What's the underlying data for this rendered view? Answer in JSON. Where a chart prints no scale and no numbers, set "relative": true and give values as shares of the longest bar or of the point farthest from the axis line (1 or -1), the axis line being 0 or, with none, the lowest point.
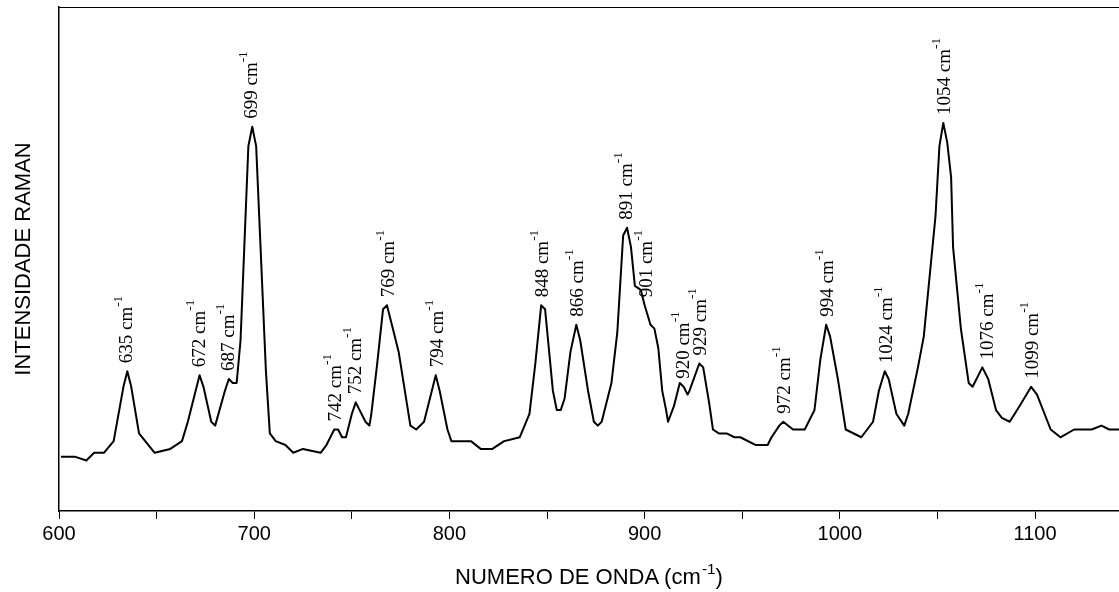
{
  "chart_data": {
    "type": "line",
    "xlabel": "NUMERO DE ONDA (cm$^{-1}$)",
    "ylabel": "INTENSIDADE RAMAN",
    "color": "#000000",
    "relative": true,
    "xlim": [
      600,
      1143
    ],
    "xticks": [
      600,
      {
        "value": 650,
        "label": null
      },
      700,
      {
        "value": 750,
        "label": null
      },
      800,
      {
        "value": 850,
        "label": null
      },
      900,
      {
        "value": 950,
        "label": null
      },
      1000,
      {
        "value": 1050,
        "label": null
      },
      1100
    ],
    "x": [
      601,
      608,
      614,
      618,
      623,
      628,
      633,
      635,
      637,
      641,
      649,
      657,
      663,
      666,
      670,
      672,
      674,
      678,
      680,
      685,
      687,
      689,
      691,
      693,
      697,
      699,
      701,
      706,
      708,
      711,
      716,
      720,
      725,
      734,
      737,
      741,
      743,
      745,
      747,
      750,
      752,
      754,
      757,
      759,
      760,
      763,
      766,
      768,
      771,
      774,
      780,
      783,
      787,
      793,
      795,
      799,
      801,
      807,
      811,
      816,
      822,
      828,
      836,
      841,
      844,
      847,
      849,
      853,
      855,
      857,
      859,
      862,
      865,
      867,
      871,
      874,
      876,
      878,
      883,
      886,
      889,
      891,
      893,
      895,
      898,
      900,
      903,
      905,
      907,
      909,
      911,
      912,
      915,
      918,
      920,
      922,
      923,
      928,
      930,
      933,
      935,
      938,
      942,
      946,
      949,
      957,
      963,
      965,
      969,
      971,
      976,
      982,
      987,
      990,
      993,
      995,
      999,
      1003,
      1011,
      1017,
      1020,
      1023,
      1025,
      1029,
      1033,
      1035,
      1040,
      1043,
      1049,
      1051,
      1053,
      1055,
      1057,
      1058,
      1062,
      1066,
      1068,
      1071,
      1073,
      1076,
      1080,
      1083,
      1087,
      1092,
      1098,
      1101,
      1108,
      1113,
      1120,
      1126,
      1129,
      1134,
      1138,
      1143
    ],
    "values": [
      0.14,
      0.14,
      0.13,
      0.15,
      0.15,
      0.18,
      0.32,
      0.36,
      0.32,
      0.2,
      0.15,
      0.16,
      0.18,
      0.23,
      0.31,
      0.35,
      0.32,
      0.23,
      0.22,
      0.31,
      0.34,
      0.33,
      0.33,
      0.44,
      0.94,
      0.99,
      0.94,
      0.36,
      0.2,
      0.18,
      0.17,
      0.15,
      0.16,
      0.15,
      0.17,
      0.21,
      0.21,
      0.19,
      0.19,
      0.25,
      0.28,
      0.26,
      0.23,
      0.22,
      0.25,
      0.38,
      0.52,
      0.53,
      0.47,
      0.41,
      0.22,
      0.21,
      0.23,
      0.35,
      0.31,
      0.21,
      0.18,
      0.18,
      0.18,
      0.16,
      0.16,
      0.18,
      0.19,
      0.25,
      0.38,
      0.53,
      0.52,
      0.31,
      0.26,
      0.26,
      0.29,
      0.41,
      0.48,
      0.44,
      0.31,
      0.23,
      0.22,
      0.23,
      0.33,
      0.46,
      0.71,
      0.73,
      0.68,
      0.58,
      0.57,
      0.53,
      0.48,
      0.47,
      0.42,
      0.31,
      0.26,
      0.23,
      0.27,
      0.33,
      0.32,
      0.3,
      0.31,
      0.38,
      0.37,
      0.28,
      0.21,
      0.2,
      0.2,
      0.19,
      0.19,
      0.17,
      0.17,
      0.19,
      0.22,
      0.23,
      0.21,
      0.21,
      0.26,
      0.39,
      0.48,
      0.45,
      0.34,
      0.21,
      0.19,
      0.23,
      0.31,
      0.36,
      0.34,
      0.25,
      0.22,
      0.25,
      0.37,
      0.45,
      0.76,
      0.94,
      1,
      0.95,
      0.86,
      0.68,
      0.47,
      0.33,
      0.32,
      0.35,
      0.37,
      0.34,
      0.26,
      0.24,
      0.23,
      0.27,
      0.32,
      0.3,
      0.21,
      0.19,
      0.21,
      0.21,
      0.21,
      0.22,
      0.21,
      0.21
    ],
    "annotations": [
      {
        "text": "635 cm$^{-1}$",
        "x": 635,
        "y": 0.36
      },
      {
        "text": "672 cm$^{-1}$",
        "x": 672,
        "y": 0.35
      },
      {
        "text": "687 cm$^{-1}$",
        "x": 687,
        "y": 0.34
      },
      {
        "text": "699 cm$^{-1}$",
        "x": 699,
        "y": 0.99
      },
      {
        "text": "742 cm$^{-1}$",
        "x": 742,
        "y": 0.21
      },
      {
        "text": "752 cm$^{-1}$",
        "x": 752,
        "y": 0.28
      },
      {
        "text": "769 cm$^{-1}$",
        "x": 769,
        "y": 0.53
      },
      {
        "text": "794 cm$^{-1}$",
        "x": 794,
        "y": 0.35
      },
      {
        "text": "848 cm$^{-1}$",
        "x": 848,
        "y": 0.53
      },
      {
        "text": "866 cm$^{-1}$",
        "x": 866,
        "y": 0.48
      },
      {
        "text": "891 cm$^{-1}$",
        "x": 891,
        "y": 0.73
      },
      {
        "text": "901 cm$^{-1}$",
        "x": 901,
        "y": 0.53
      },
      {
        "text": "920 cm$^{-1}$",
        "x": 920,
        "y": 0.32
      },
      {
        "text": "929 cm$^{-1}$",
        "x": 929,
        "y": 0.38
      },
      {
        "text": "972 cm$^{-1}$",
        "x": 972,
        "y": 0.23
      },
      {
        "text": "994 cm$^{-1}$",
        "x": 994,
        "y": 0.48
      },
      {
        "text": "1024 cm$^{-1}$",
        "x": 1024,
        "y": 0.36
      },
      {
        "text": "1054 cm$^{-1}$",
        "x": 1054,
        "y": 1
      },
      {
        "text": "1076 cm$^{-1}$",
        "x": 1076,
        "y": 0.37
      },
      {
        "text": "1099 cm$^{-1}$",
        "x": 1099,
        "y": 0.32
      }
    ]
  }
}
